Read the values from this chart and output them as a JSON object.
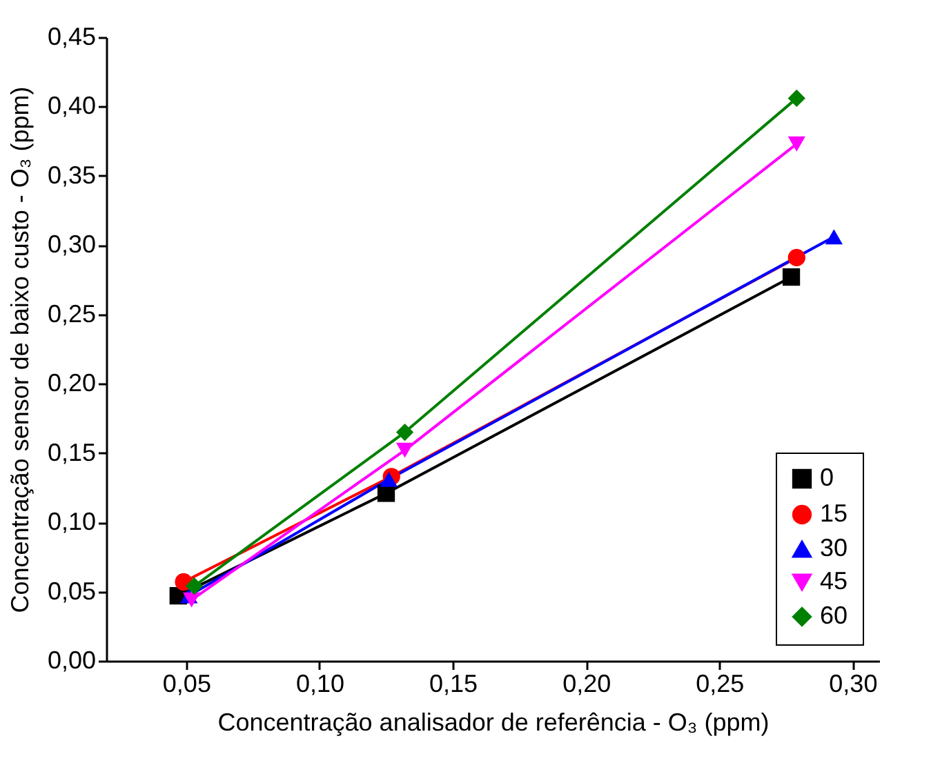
{
  "chart_data": {
    "type": "line",
    "xlabel": "Concentração analisador de referência - O₃ (ppm)",
    "ylabel": "Concentração sensor de baixo custo - O₃ (ppm)",
    "xlim": [
      0.02,
      0.31
    ],
    "xticks": [
      {
        "value": 0.05,
        "label": "0,05"
      },
      {
        "value": 0.1,
        "label": "0,10"
      },
      {
        "value": 0.15,
        "label": "0,15"
      },
      {
        "value": 0.2,
        "label": "0,20"
      },
      {
        "value": 0.25,
        "label": "0,25"
      },
      {
        "value": 0.3,
        "label": "0,30"
      }
    ],
    "ylim": [
      0,
      0.45
    ],
    "yticks": [
      {
        "value": 0,
        "label": "0,00"
      },
      {
        "value": 0.05,
        "label": "0,05"
      },
      {
        "value": 0.1,
        "label": "0,10"
      },
      {
        "value": 0.15,
        "label": "0,15"
      },
      {
        "value": 0.2,
        "label": "0,20"
      },
      {
        "value": 0.25,
        "label": "0,25"
      },
      {
        "value": 0.3,
        "label": "0,30"
      },
      {
        "value": 0.35,
        "label": "0,35"
      },
      {
        "value": 0.4,
        "label": "0,40"
      },
      {
        "value": 0.45,
        "label": "0,45"
      }
    ],
    "grid": false,
    "legend": "bottom right",
    "line_style": "solid",
    "series": [
      {
        "name": "0",
        "color": "#000000",
        "marker": "square",
        "x": [
          0.047,
          0.125,
          0.277
        ],
        "values": [
          0.047,
          0.121,
          0.277
        ]
      },
      {
        "name": "15",
        "color": "#ff0000",
        "marker": "circle",
        "x": [
          0.049,
          0.127,
          0.279
        ],
        "values": [
          0.057,
          0.133,
          0.291
        ]
      },
      {
        "name": "30",
        "color": "#0000ff",
        "marker": "triangle",
        "x": [
          0.051,
          0.126,
          0.293
        ],
        "values": [
          0.047,
          0.131,
          0.306
        ]
      },
      {
        "name": "45",
        "color": "#ff00ff",
        "marker": "triangle-down",
        "x": [
          0.052,
          0.132,
          0.279
        ],
        "values": [
          0.044,
          0.152,
          0.373
        ]
      },
      {
        "name": "60",
        "color": "#008000",
        "marker": "diamond",
        "x": [
          0.053,
          0.132,
          0.279
        ],
        "values": [
          0.054,
          0.165,
          0.406
        ]
      }
    ]
  }
}
